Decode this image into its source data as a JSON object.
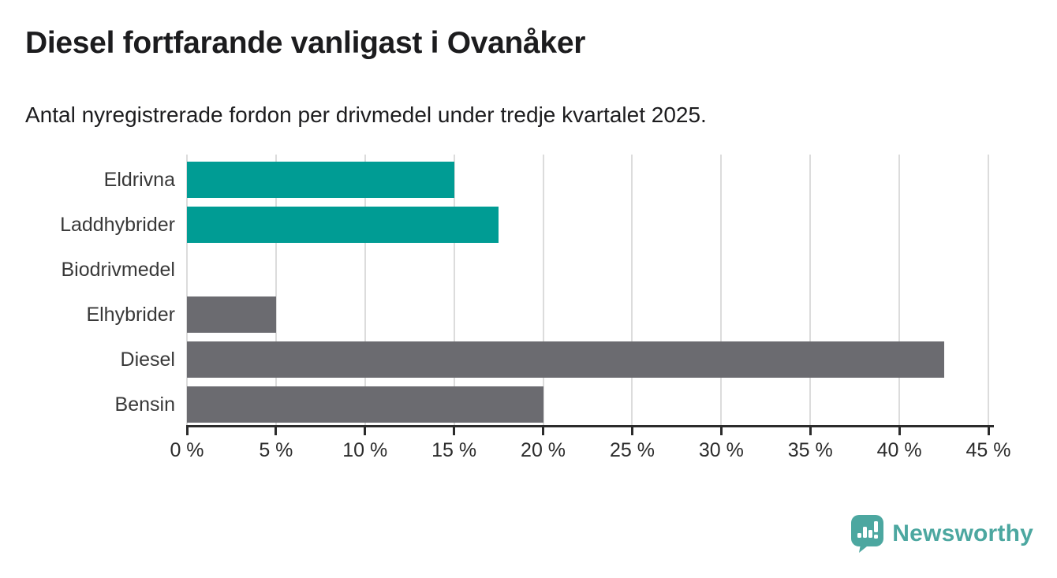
{
  "header": {
    "title": "Diesel fortfarande vanligast i Ovanåker",
    "subtitle": "Antal nyregistrerade fordon per drivmedel under tredje kvartalet 2025."
  },
  "chart_data": {
    "type": "bar",
    "orientation": "horizontal",
    "title": "Diesel fortfarande vanligast i Ovanåker",
    "subtitle": "Antal nyregistrerade fordon per drivmedel under tredje kvartalet 2025.",
    "categories": [
      "Eldrivna",
      "Laddhybrider",
      "Biodrivmedel",
      "Elhybrider",
      "Diesel",
      "Bensin"
    ],
    "values": [
      15,
      17.5,
      0,
      5,
      42.5,
      20
    ],
    "unit": "%",
    "xlabel": "",
    "ylabel": "",
    "xlim": [
      0,
      45
    ],
    "x_ticks": [
      0,
      5,
      10,
      15,
      20,
      25,
      30,
      35,
      40,
      45
    ],
    "x_tick_labels": [
      "0 %",
      "5 %",
      "10 %",
      "15 %",
      "20 %",
      "25 %",
      "30 %",
      "35 %",
      "40 %",
      "45 %"
    ],
    "grid": true,
    "legend": false,
    "bar_colors": [
      "#009c94",
      "#009c94",
      "#6b6b70",
      "#6b6b70",
      "#6b6b70",
      "#6b6b70"
    ],
    "colors": {
      "electric_accent": "#009c94",
      "other_fuel": "#6b6b70",
      "gridline": "#dcdcdc",
      "axis": "#2b2b2b"
    }
  },
  "branding": {
    "logo_text": "Newsworthy",
    "logo_color": "#4ca7a0",
    "logo_icon": "newsworthy-pin-barchart-icon"
  }
}
